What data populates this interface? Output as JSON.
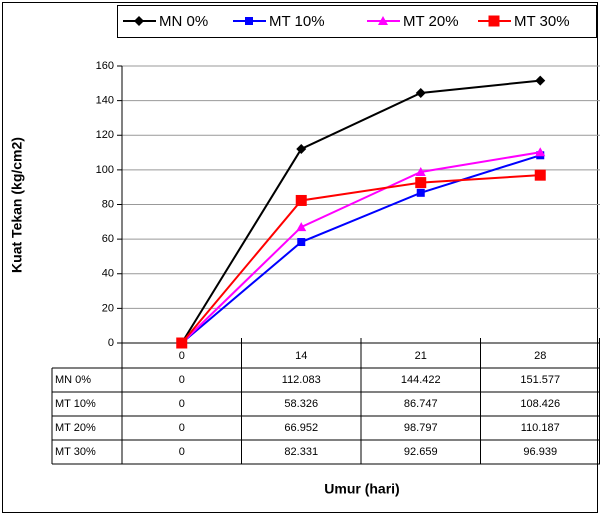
{
  "chart_data": {
    "type": "line",
    "x_label": "Umur (hari)",
    "y_label": "Kuat Tekan (kg/cm2)",
    "categories": [
      "0",
      "14",
      "21",
      "28"
    ],
    "series": [
      {
        "name": "MN 0%",
        "color": "#000000",
        "marker": "diamond",
        "values": [
          0,
          112.083,
          144.422,
          151.577
        ]
      },
      {
        "name": "MT 10%",
        "color": "#0000ff",
        "marker": "square",
        "values": [
          0,
          58.326,
          86.747,
          108.426
        ]
      },
      {
        "name": "MT 20%",
        "color": "#ff00ff",
        "marker": "triangle",
        "values": [
          0,
          66.952,
          98.797,
          110.187
        ]
      },
      {
        "name": "MT 30%",
        "color": "#ff0000",
        "marker": "square-large",
        "values": [
          0,
          82.331,
          92.659,
          96.939
        ]
      }
    ],
    "ylim": [
      0,
      160
    ],
    "yticks": [
      0,
      20,
      40,
      60,
      80,
      100,
      120,
      140,
      160
    ],
    "grid": true,
    "legend": "top-right",
    "data_table": true
  }
}
